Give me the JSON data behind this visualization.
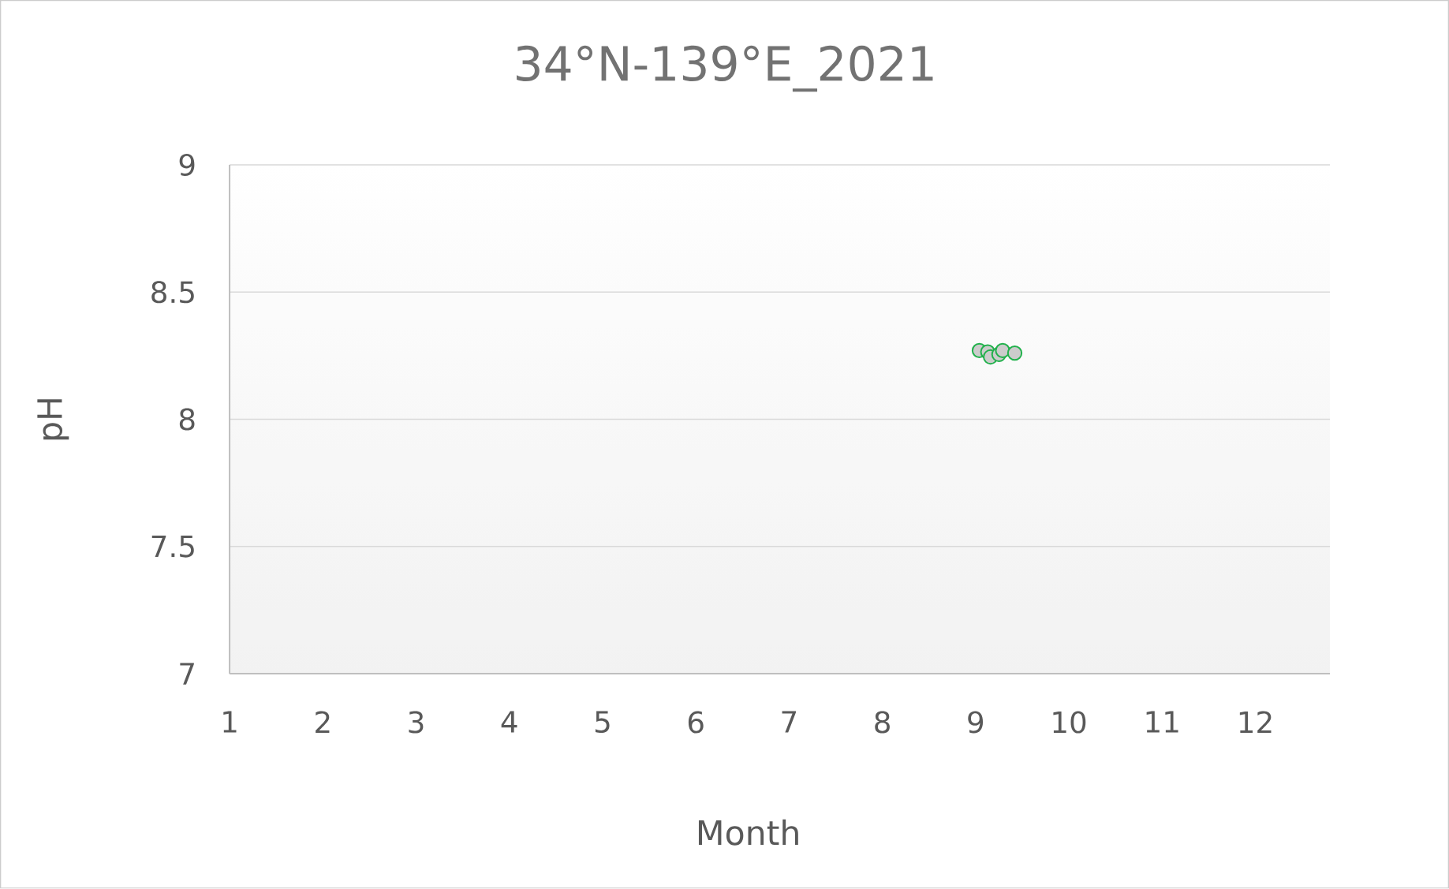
{
  "chart_data": {
    "type": "scatter",
    "title": "34°N-139°E_2021",
    "xlabel": "Month",
    "ylabel": "pH",
    "x": [
      9.04,
      9.13,
      9.16,
      9.25,
      9.29,
      9.42
    ],
    "values": [
      8.27,
      8.265,
      8.245,
      8.255,
      8.27,
      8.26
    ],
    "color": "#22b14c",
    "xlim": [
      1,
      12.8
    ],
    "xticks": [
      1,
      2,
      3,
      4,
      5,
      6,
      7,
      8,
      9,
      10,
      11,
      12
    ],
    "ylim": [
      7,
      9
    ],
    "yticks": [
      7,
      7.5,
      8,
      8.5,
      9
    ],
    "grid": "y"
  }
}
